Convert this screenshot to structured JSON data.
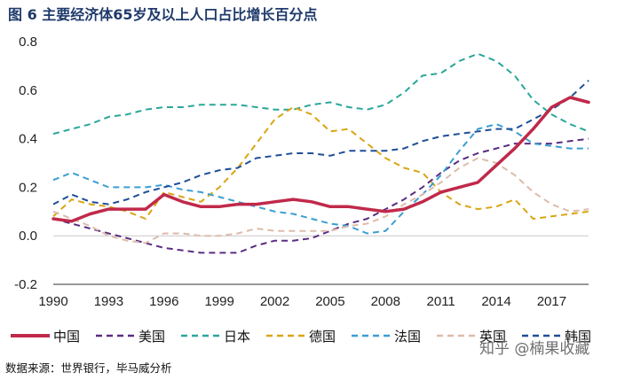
{
  "title": "图 6  主要经济体65岁及以上人口占比增长百分点",
  "source": "数据来源：世界银行，毕马威分析",
  "watermark": "知乎 @楠果收藏",
  "chart_data": {
    "type": "line",
    "xlim": [
      1990,
      2019
    ],
    "ylim": [
      -0.2,
      0.8
    ],
    "x_ticks": [
      "1990",
      "1993",
      "1996",
      "1999",
      "2002",
      "2005",
      "2008",
      "2011",
      "2014",
      "2017"
    ],
    "y_ticks": [
      "-0.2",
      "0.0",
      "0.2",
      "0.4",
      "0.6",
      "0.8"
    ],
    "grid": false,
    "legend_position": "bottom",
    "x": [
      1990,
      1991,
      1992,
      1993,
      1994,
      1995,
      1996,
      1997,
      1998,
      1999,
      2000,
      2001,
      2002,
      2003,
      2004,
      2005,
      2006,
      2007,
      2008,
      2009,
      2010,
      2011,
      2012,
      2013,
      2014,
      2015,
      2016,
      2017,
      2018,
      2019
    ],
    "series": [
      {
        "name": "中国",
        "color": "#c0294a",
        "dash": "solid",
        "width": 3.5,
        "values": [
          0.07,
          0.06,
          0.09,
          0.11,
          0.11,
          0.11,
          0.17,
          0.14,
          0.12,
          0.12,
          0.13,
          0.13,
          0.14,
          0.15,
          0.14,
          0.12,
          0.12,
          0.11,
          0.1,
          0.11,
          0.14,
          0.18,
          0.2,
          0.22,
          0.29,
          0.36,
          0.44,
          0.53,
          0.57,
          0.55
        ]
      },
      {
        "name": "美国",
        "color": "#5a2d82",
        "dash": "dashed",
        "width": 2,
        "values": [
          0.07,
          0.05,
          0.03,
          0.01,
          -0.01,
          -0.03,
          -0.05,
          -0.06,
          -0.07,
          -0.07,
          -0.07,
          -0.04,
          -0.02,
          -0.02,
          -0.01,
          0.02,
          0.05,
          0.07,
          0.11,
          0.15,
          0.2,
          0.26,
          0.31,
          0.34,
          0.36,
          0.38,
          0.38,
          0.38,
          0.39,
          0.4
        ]
      },
      {
        "name": "日本",
        "color": "#2aa69a",
        "dash": "dashed",
        "width": 2,
        "values": [
          0.42,
          0.44,
          0.46,
          0.49,
          0.5,
          0.52,
          0.53,
          0.53,
          0.54,
          0.54,
          0.54,
          0.53,
          0.52,
          0.52,
          0.54,
          0.55,
          0.53,
          0.52,
          0.54,
          0.59,
          0.66,
          0.67,
          0.72,
          0.75,
          0.72,
          0.66,
          0.56,
          0.5,
          0.46,
          0.43
        ]
      },
      {
        "name": "德国",
        "color": "#d9a514",
        "dash": "dashed",
        "width": 2,
        "values": [
          0.08,
          0.15,
          0.13,
          0.12,
          0.1,
          0.07,
          0.18,
          0.16,
          0.14,
          0.2,
          0.28,
          0.38,
          0.48,
          0.53,
          0.5,
          0.43,
          0.44,
          0.38,
          0.32,
          0.28,
          0.26,
          0.18,
          0.13,
          0.11,
          0.12,
          0.15,
          0.07,
          0.08,
          0.09,
          0.1
        ]
      },
      {
        "name": "法国",
        "color": "#3a9ed2",
        "dash": "dashed",
        "width": 2,
        "values": [
          0.23,
          0.26,
          0.23,
          0.2,
          0.2,
          0.2,
          0.21,
          0.19,
          0.18,
          0.16,
          0.14,
          0.12,
          0.1,
          0.09,
          0.07,
          0.05,
          0.04,
          0.01,
          0.02,
          0.1,
          0.17,
          0.25,
          0.35,
          0.44,
          0.46,
          0.43,
          0.38,
          0.37,
          0.36,
          0.36
        ]
      },
      {
        "name": "英国",
        "color": "#ddbbaa",
        "dash": "dashed",
        "width": 2,
        "values": [
          0.1,
          0.07,
          0.04,
          0.0,
          -0.02,
          -0.03,
          0.01,
          0.01,
          0.0,
          0.0,
          0.01,
          0.03,
          0.02,
          0.02,
          0.02,
          0.02,
          0.04,
          0.05,
          0.08,
          0.13,
          0.17,
          0.22,
          0.28,
          0.32,
          0.3,
          0.25,
          0.18,
          0.13,
          0.1,
          0.11
        ]
      },
      {
        "name": "韩国",
        "color": "#1f4e96",
        "dash": "dashed",
        "width": 2,
        "values": [
          0.13,
          0.17,
          0.14,
          0.13,
          0.15,
          0.18,
          0.2,
          0.22,
          0.25,
          0.27,
          0.28,
          0.32,
          0.33,
          0.34,
          0.34,
          0.33,
          0.35,
          0.35,
          0.35,
          0.36,
          0.39,
          0.41,
          0.42,
          0.43,
          0.44,
          0.44,
          0.48,
          0.52,
          0.57,
          0.64
        ]
      }
    ]
  }
}
